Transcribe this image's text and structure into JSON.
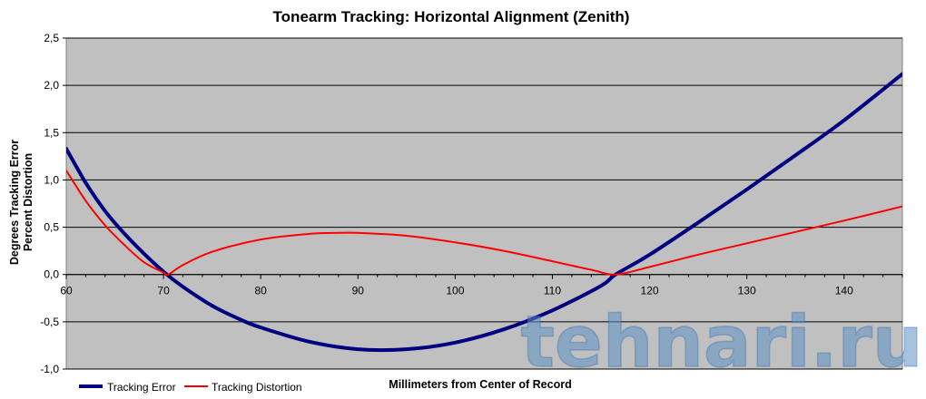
{
  "chart_data": {
    "type": "line",
    "title": "Tonearm Tracking:  Horizontal Alignment (Zenith)",
    "xlabel": "Millimeters from  Center  of Record",
    "ylabel": [
      "Degrees Tracking Error",
      "Percent Distortion"
    ],
    "xlim": [
      60,
      146
    ],
    "ylim": [
      -1.0,
      2.5
    ],
    "x_ticks": [
      "60",
      "70",
      "80",
      "90",
      "100",
      "110",
      "120",
      "130",
      "140"
    ],
    "y_ticks": [
      "-1,0",
      "-0,5",
      "0,0",
      "0,5",
      "1,0",
      "1,5",
      "2,0",
      "2,5"
    ],
    "grid": "horizontal",
    "legend_position": "bottom-left",
    "series": [
      {
        "name": "Tracking Error",
        "color": "#000080",
        "x": [
          60,
          62,
          64,
          66,
          68,
          70,
          72,
          75,
          78,
          80,
          85,
          90,
          95,
          100,
          105,
          110,
          115,
          116.5,
          120,
          125,
          130,
          135,
          140,
          146
        ],
        "y": [
          1.33,
          0.97,
          0.67,
          0.43,
          0.22,
          0.03,
          -0.13,
          -0.33,
          -0.48,
          -0.56,
          -0.71,
          -0.79,
          -0.79,
          -0.72,
          -0.58,
          -0.38,
          -0.12,
          0.0,
          0.21,
          0.55,
          0.9,
          1.26,
          1.63,
          2.12
        ]
      },
      {
        "name": "Tracking Distortion",
        "color": "#ff0000",
        "x": [
          60,
          62,
          64,
          66,
          68,
          70,
          70.5,
          72,
          75,
          80,
          85,
          88,
          90,
          95,
          100,
          105,
          110,
          114,
          116.5,
          120,
          125,
          130,
          135,
          140,
          146
        ],
        "y": [
          1.1,
          0.78,
          0.52,
          0.31,
          0.13,
          0.02,
          0.0,
          0.1,
          0.24,
          0.37,
          0.43,
          0.44,
          0.44,
          0.41,
          0.34,
          0.25,
          0.14,
          0.05,
          0.0,
          0.08,
          0.21,
          0.33,
          0.45,
          0.57,
          0.72
        ]
      }
    ]
  },
  "watermark": "tehnari.ru"
}
